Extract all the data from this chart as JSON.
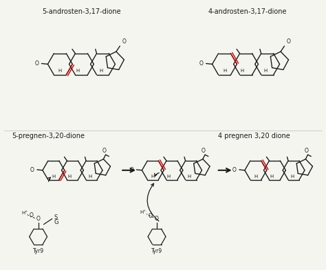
{
  "title_top_left": "5-androsten-3,17-dione",
  "title_top_right": "4-androsten-3,17-dione",
  "title_bottom_left": "5-pregnen-3,20-dione",
  "title_bottom_right": "4 pregnen 3,20 dione",
  "bg_color": "#f5f5f0",
  "line_color": "#1a1a1a",
  "red_color": "#c00000",
  "fig_width": 4.74,
  "fig_height": 3.93,
  "dpi": 100
}
